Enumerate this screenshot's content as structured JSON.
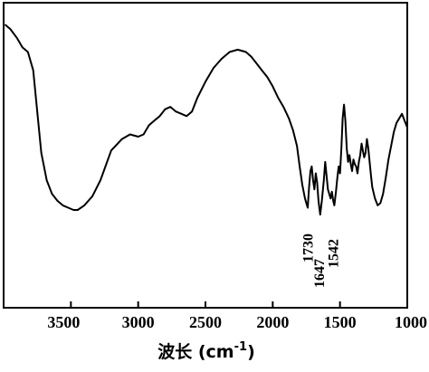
{
  "chart_data": {
    "type": "line",
    "xlabel_main": "波长 (cm",
    "xlabel_sup": "-1",
    "xlabel_close": ")",
    "ylabel": "",
    "xlim": [
      4000,
      1000
    ],
    "x_reversed": true,
    "grid": false,
    "x_ticks": [
      3500,
      3000,
      2500,
      2000,
      1500,
      1000
    ],
    "x_tick_labels": [
      "3500",
      "3000",
      "2500",
      "2000",
      "1500",
      "1000"
    ],
    "y_ticks_shown": false,
    "annotations": [
      {
        "text": "1730",
        "x": 1730
      },
      {
        "text": "1647",
        "x": 1647
      },
      {
        "text": "1542",
        "x": 1542
      }
    ],
    "series": [
      {
        "x": [
          3990,
          3950,
          3900,
          3860,
          3820,
          3780,
          3720,
          3680,
          3640,
          3600,
          3560,
          3520,
          3480,
          3450,
          3400,
          3340,
          3280,
          3200,
          3120,
          3060,
          3000,
          2960,
          2920,
          2880,
          2840,
          2800,
          2760,
          2720,
          2680,
          2640,
          2600,
          2560,
          2500,
          2440,
          2380,
          2320,
          2260,
          2200,
          2160,
          2120,
          2080,
          2040,
          2000,
          1960,
          1920,
          1880,
          1850,
          1820,
          1800,
          1780,
          1760,
          1740,
          1730,
          1720,
          1710,
          1700,
          1690,
          1680,
          1670,
          1660,
          1647,
          1635,
          1620,
          1610,
          1600,
          1590,
          1580,
          1570,
          1560,
          1550,
          1542,
          1530,
          1520,
          1510,
          1500,
          1490,
          1480,
          1470,
          1460,
          1450,
          1440,
          1430,
          1420,
          1410,
          1400,
          1390,
          1380,
          1370,
          1360,
          1350,
          1340,
          1330,
          1320,
          1310,
          1300,
          1290,
          1280,
          1270,
          1260,
          1240,
          1220,
          1200,
          1180,
          1160,
          1140,
          1120,
          1100,
          1080,
          1060,
          1040,
          1020,
          1000
        ],
        "y": [
          0.98,
          0.96,
          0.92,
          0.88,
          0.86,
          0.78,
          0.42,
          0.3,
          0.24,
          0.21,
          0.19,
          0.18,
          0.17,
          0.17,
          0.19,
          0.23,
          0.3,
          0.43,
          0.48,
          0.5,
          0.49,
          0.5,
          0.54,
          0.56,
          0.58,
          0.61,
          0.62,
          0.6,
          0.59,
          0.58,
          0.6,
          0.66,
          0.73,
          0.79,
          0.83,
          0.86,
          0.87,
          0.86,
          0.84,
          0.81,
          0.78,
          0.75,
          0.71,
          0.66,
          0.62,
          0.57,
          0.52,
          0.45,
          0.36,
          0.28,
          0.22,
          0.18,
          0.27,
          0.34,
          0.36,
          0.3,
          0.26,
          0.33,
          0.29,
          0.21,
          0.15,
          0.21,
          0.3,
          0.38,
          0.32,
          0.26,
          0.24,
          0.22,
          0.25,
          0.21,
          0.19,
          0.25,
          0.31,
          0.36,
          0.33,
          0.44,
          0.57,
          0.63,
          0.56,
          0.44,
          0.38,
          0.41,
          0.37,
          0.34,
          0.39,
          0.37,
          0.36,
          0.33,
          0.38,
          0.41,
          0.46,
          0.43,
          0.4,
          0.42,
          0.48,
          0.44,
          0.38,
          0.32,
          0.27,
          0.22,
          0.19,
          0.2,
          0.24,
          0.31,
          0.39,
          0.45,
          0.51,
          0.55,
          0.57,
          0.59,
          0.56,
          0.53
        ]
      }
    ]
  }
}
